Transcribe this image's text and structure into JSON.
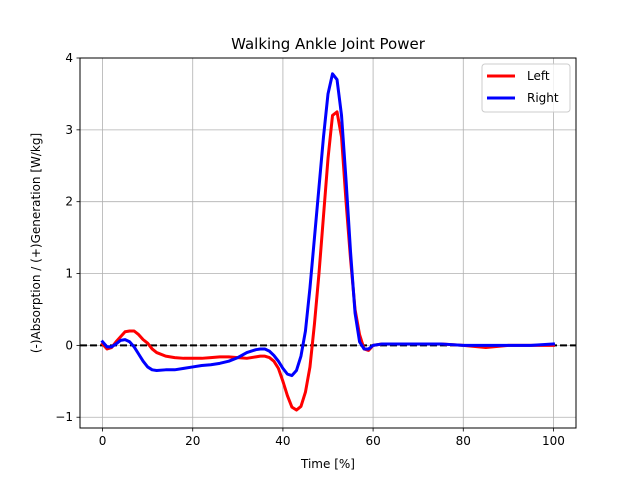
{
  "chart_data": {
    "type": "line",
    "title": "Walking Ankle Joint Power",
    "xlabel": "Time [%]",
    "ylabel": "(-)Absorption / (+)Generation [W/kg]",
    "xlim": [
      -5,
      105
    ],
    "ylim": [
      -1.15,
      4.0
    ],
    "xticks": [
      0,
      20,
      40,
      60,
      80,
      100
    ],
    "yticks": [
      -1,
      0,
      1,
      2,
      3,
      4
    ],
    "grid": true,
    "legend_position": "top-right",
    "reference_line": {
      "y": 0,
      "style": "dashed",
      "color": "#000000"
    },
    "series": [
      {
        "name": "Left",
        "color": "#ff0000",
        "x": [
          0,
          1,
          2,
          3,
          4,
          5,
          6,
          7,
          8,
          9,
          10,
          11,
          12,
          14,
          16,
          18,
          20,
          22,
          24,
          26,
          28,
          30,
          32,
          34,
          35,
          36,
          37,
          38,
          39,
          40,
          41,
          42,
          43,
          44,
          45,
          46,
          47,
          48,
          49,
          50,
          51,
          52,
          53,
          54,
          55,
          56,
          57,
          58,
          59,
          60,
          62,
          65,
          70,
          75,
          80,
          85,
          90,
          95,
          100
        ],
        "y": [
          0.02,
          -0.05,
          -0.03,
          0.05,
          0.12,
          0.19,
          0.2,
          0.2,
          0.15,
          0.08,
          0.03,
          -0.05,
          -0.1,
          -0.15,
          -0.17,
          -0.18,
          -0.18,
          -0.18,
          -0.17,
          -0.16,
          -0.16,
          -0.17,
          -0.18,
          -0.16,
          -0.15,
          -0.15,
          -0.17,
          -0.22,
          -0.32,
          -0.5,
          -0.7,
          -0.86,
          -0.9,
          -0.85,
          -0.65,
          -0.3,
          0.3,
          1.0,
          1.8,
          2.6,
          3.2,
          3.25,
          2.9,
          2.0,
          1.2,
          0.5,
          0.15,
          -0.05,
          -0.07,
          0.0,
          0.02,
          0.02,
          0.02,
          0.02,
          0.0,
          -0.03,
          0.0,
          0.0,
          0.0
        ]
      },
      {
        "name": "Right",
        "color": "#0000ff",
        "x": [
          0,
          1,
          2,
          3,
          4,
          5,
          6,
          7,
          8,
          9,
          10,
          11,
          12,
          14,
          16,
          18,
          20,
          22,
          24,
          26,
          28,
          30,
          32,
          34,
          35,
          36,
          37,
          38,
          39,
          40,
          41,
          42,
          43,
          44,
          45,
          46,
          47,
          48,
          49,
          50,
          51,
          52,
          53,
          54,
          55,
          56,
          57,
          58,
          59,
          60,
          62,
          65,
          70,
          75,
          80,
          85,
          90,
          95,
          100
        ],
        "y": [
          0.05,
          -0.02,
          -0.02,
          0.02,
          0.07,
          0.08,
          0.05,
          -0.02,
          -0.12,
          -0.22,
          -0.3,
          -0.34,
          -0.35,
          -0.34,
          -0.34,
          -0.32,
          -0.3,
          -0.28,
          -0.27,
          -0.25,
          -0.22,
          -0.17,
          -0.1,
          -0.06,
          -0.05,
          -0.05,
          -0.08,
          -0.14,
          -0.22,
          -0.32,
          -0.4,
          -0.42,
          -0.35,
          -0.15,
          0.2,
          0.8,
          1.5,
          2.2,
          2.9,
          3.5,
          3.78,
          3.7,
          3.2,
          2.3,
          1.3,
          0.45,
          0.05,
          -0.05,
          -0.05,
          0.0,
          0.02,
          0.02,
          0.02,
          0.02,
          0.0,
          0.0,
          0.0,
          0.0,
          0.02
        ]
      }
    ]
  }
}
